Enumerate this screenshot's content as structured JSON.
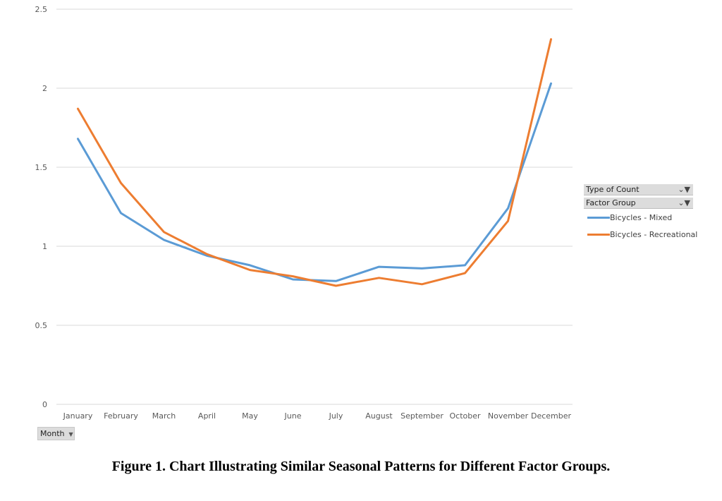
{
  "chart_data": {
    "type": "line",
    "categories": [
      "January",
      "February",
      "March",
      "April",
      "May",
      "June",
      "July",
      "August",
      "September",
      "October",
      "November",
      "December"
    ],
    "series": [
      {
        "name": "Bicycles - Mixed",
        "color": "#5b9bd5",
        "values": [
          1.68,
          1.21,
          1.04,
          0.94,
          0.88,
          0.79,
          0.78,
          0.87,
          0.86,
          0.88,
          1.24,
          2.03
        ]
      },
      {
        "name": "Bicycles - Recreational",
        "color": "#ed7d31",
        "values": [
          1.87,
          1.4,
          1.09,
          0.95,
          0.85,
          0.81,
          0.75,
          0.8,
          0.76,
          0.83,
          1.16,
          2.31
        ]
      }
    ],
    "ylim": [
      0,
      2.5
    ],
    "yticks": [
      "0",
      "0.5",
      "1",
      "1.5",
      "2",
      "2.5"
    ],
    "grid": true,
    "legend_placement": "right"
  },
  "legend": {
    "field1": "Type of Count",
    "field2": "Factor Group",
    "filter_icon": "filter-icon"
  },
  "axis_button": {
    "label": "Month",
    "icon": "chevron-down-icon"
  },
  "caption": "Figure 1. Chart Illustrating Similar Seasonal Patterns for Different Factor Groups."
}
